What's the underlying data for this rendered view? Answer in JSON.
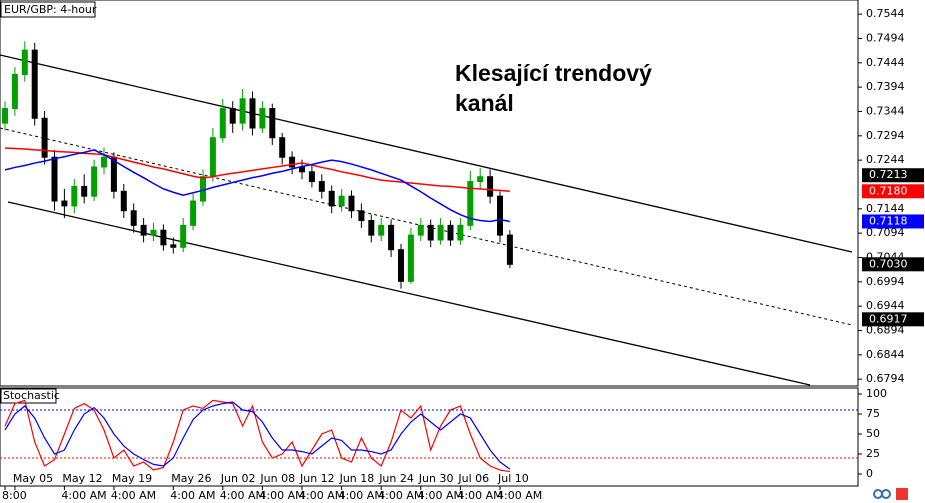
{
  "chart_data": [
    {
      "type": "candlestick",
      "title": "EUR/GBP: 4-hour",
      "annotation": "Klesající trendový kanál",
      "up_color": "#00a000",
      "down_color": "#000000",
      "ylim": [
        0.678,
        0.7573
      ],
      "yticks": [
        0.7544,
        0.7494,
        0.7444,
        0.7394,
        0.7344,
        0.7294,
        0.7244,
        0.7144,
        0.7094,
        0.7044,
        0.6994,
        0.6944,
        0.6894,
        0.6844,
        0.6794
      ],
      "price_tags": [
        {
          "value": 0.7213,
          "label": "0.7213",
          "color": "#000000"
        },
        {
          "value": 0.718,
          "label": "0.7180",
          "color": "#ff0000"
        },
        {
          "value": 0.7118,
          "label": "0.7118",
          "color": "#0000ff"
        },
        {
          "value": 0.703,
          "label": "0.7030",
          "color": "#000000"
        },
        {
          "value": 0.6917,
          "label": "0.6917",
          "color": "#000000"
        }
      ],
      "categories": [
        null,
        "May 05",
        null,
        null,
        null,
        null,
        "May 12",
        null,
        null,
        null,
        null,
        "May 19",
        null,
        null,
        null,
        null,
        null,
        "May 26",
        null,
        null,
        null,
        null,
        "Jun 02",
        null,
        null,
        null,
        "Jun 08",
        null,
        null,
        null,
        "Jun 12",
        null,
        null,
        null,
        "Jun 18",
        null,
        null,
        null,
        "Jun 24",
        null,
        null,
        null,
        "Jun 30",
        null,
        null,
        null,
        "Jul 06",
        null,
        null,
        null,
        "Jul 10",
        null
      ],
      "time_labels": [
        "8:00",
        null,
        null,
        null,
        null,
        null,
        "4:00 AM",
        null,
        null,
        null,
        null,
        "4:00 AM",
        null,
        null,
        null,
        null,
        null,
        "4:00 AM",
        null,
        null,
        null,
        null,
        "4:00 AM",
        null,
        null,
        null,
        "4:00 AM",
        null,
        null,
        null,
        "4:00 AM",
        null,
        null,
        null,
        "4:00 AM",
        null,
        null,
        null,
        "4:00 AM",
        null,
        null,
        null,
        "4:00 AM",
        null,
        null,
        null,
        "4:00 AM",
        null,
        null,
        null,
        "4:00 AM",
        null
      ],
      "open": [
        0.732,
        0.735,
        0.742,
        0.747,
        0.733,
        0.725,
        0.716,
        0.715,
        0.719,
        0.717,
        0.723,
        0.725,
        0.718,
        0.714,
        0.711,
        0.709,
        0.71,
        0.707,
        0.7065,
        0.711,
        0.716,
        0.721,
        0.729,
        0.735,
        0.732,
        0.737,
        0.731,
        0.735,
        0.729,
        0.725,
        0.723,
        0.722,
        0.72,
        0.718,
        0.715,
        0.717,
        0.714,
        0.712,
        0.709,
        0.711,
        0.706,
        0.6995,
        0.709,
        0.711,
        0.708,
        0.711,
        0.708,
        0.711,
        0.72,
        0.721,
        0.717,
        0.709
      ],
      "high": [
        0.7365,
        0.7435,
        0.7488,
        0.7485,
        0.7345,
        0.7265,
        0.7185,
        0.7205,
        0.7215,
        0.7245,
        0.727,
        0.726,
        0.7195,
        0.7155,
        0.7125,
        0.7115,
        0.7112,
        0.7085,
        0.7125,
        0.7175,
        0.7225,
        0.731,
        0.737,
        0.7365,
        0.739,
        0.7385,
        0.7365,
        0.736,
        0.73,
        0.7262,
        0.7245,
        0.7235,
        0.7215,
        0.7192,
        0.7185,
        0.7182,
        0.7155,
        0.7132,
        0.7125,
        0.7122,
        0.7072,
        0.7105,
        0.7125,
        0.7122,
        0.7125,
        0.712,
        0.7125,
        0.7222,
        0.7228,
        0.7225,
        0.718,
        0.71
      ],
      "low": [
        0.7305,
        0.7335,
        0.7405,
        0.7315,
        0.7235,
        0.714,
        0.7125,
        0.7135,
        0.7155,
        0.716,
        0.7215,
        0.7165,
        0.7125,
        0.7095,
        0.7075,
        0.7078,
        0.7058,
        0.7052,
        0.7055,
        0.71,
        0.715,
        0.72,
        0.728,
        0.73,
        0.7305,
        0.7295,
        0.73,
        0.7275,
        0.7235,
        0.7215,
        0.7205,
        0.7188,
        0.7165,
        0.7135,
        0.7138,
        0.7125,
        0.7105,
        0.7075,
        0.7078,
        0.7045,
        0.698,
        0.699,
        0.7078,
        0.7065,
        0.707,
        0.7068,
        0.707,
        0.71,
        0.7185,
        0.7155,
        0.7075,
        0.7022
      ],
      "close": [
        0.735,
        0.742,
        0.747,
        0.733,
        0.725,
        0.716,
        0.715,
        0.719,
        0.717,
        0.723,
        0.725,
        0.718,
        0.714,
        0.711,
        0.709,
        0.71,
        0.707,
        0.7065,
        0.711,
        0.716,
        0.721,
        0.729,
        0.735,
        0.732,
        0.737,
        0.731,
        0.735,
        0.729,
        0.725,
        0.723,
        0.722,
        0.72,
        0.718,
        0.715,
        0.717,
        0.714,
        0.712,
        0.709,
        0.711,
        0.706,
        0.6995,
        0.709,
        0.711,
        0.708,
        0.711,
        0.708,
        0.711,
        0.72,
        0.721,
        0.717,
        0.709,
        0.703
      ],
      "lines": [
        {
          "color": "#ff0000",
          "values": [
            0.7269,
            0.7268,
            0.7267,
            0.7265,
            0.7264,
            0.7262,
            0.7261,
            0.726,
            0.7258,
            0.7257,
            0.7255,
            0.725,
            0.7245,
            0.724,
            0.7235,
            0.723,
            0.7226,
            0.7221,
            0.7216,
            0.7211,
            0.7207,
            0.721,
            0.7214,
            0.7217,
            0.722,
            0.7223,
            0.7226,
            0.7229,
            0.7232,
            0.7235,
            0.7238,
            0.7234,
            0.7229,
            0.7225,
            0.722,
            0.7216,
            0.7212,
            0.7207,
            0.7203,
            0.7201,
            0.7199,
            0.7197,
            0.7195,
            0.7193,
            0.7191,
            0.719,
            0.7188,
            0.7186,
            0.7185,
            0.7183,
            0.7182,
            0.718
          ]
        },
        {
          "color": "#0000ff",
          "values": [
            0.7224,
            0.7229,
            0.7233,
            0.7238,
            0.7242,
            0.7247,
            0.7251,
            0.7256,
            0.726,
            0.7265,
            0.7255,
            0.7243,
            0.7231,
            0.7219,
            0.7208,
            0.7196,
            0.7185,
            0.7178,
            0.7172,
            0.7177,
            0.7182,
            0.7188,
            0.7193,
            0.7198,
            0.7203,
            0.7208,
            0.7212,
            0.7217,
            0.7221,
            0.7226,
            0.7231,
            0.7235,
            0.724,
            0.7244,
            0.7241,
            0.7236,
            0.723,
            0.7224,
            0.7217,
            0.721,
            0.7203,
            0.7191,
            0.7179,
            0.7166,
            0.7154,
            0.7142,
            0.7132,
            0.7124,
            0.712,
            0.7118,
            0.7122,
            0.7118
          ]
        }
      ]
    },
    {
      "type": "line",
      "title": "Stochastic",
      "ylim": [
        -15,
        107.5
      ],
      "yticks": [
        100,
        75,
        50,
        25,
        0
      ],
      "levels": [
        {
          "value": 80,
          "color": "#0000ff"
        },
        {
          "value": 20,
          "color": "#ff0000"
        }
      ],
      "series": [
        {
          "color": "#ff0000",
          "values": [
            60,
            88,
            92,
            40,
            10,
            18,
            50,
            82,
            88,
            80,
            55,
            20,
            30,
            10,
            15,
            5,
            8,
            40,
            80,
            85,
            82,
            92,
            90,
            88,
            60,
            85,
            40,
            20,
            25,
            40,
            10,
            30,
            50,
            55,
            20,
            15,
            45,
            20,
            10,
            40,
            80,
            70,
            85,
            30,
            60,
            80,
            85,
            50,
            20,
            10,
            5,
            3
          ]
        },
        {
          "color": "#0000ff",
          "values": [
            55,
            75,
            85,
            70,
            45,
            25,
            30,
            55,
            75,
            83,
            70,
            50,
            35,
            25,
            18,
            12,
            10,
            20,
            45,
            68,
            80,
            85,
            88,
            90,
            80,
            78,
            65,
            45,
            30,
            30,
            28,
            25,
            35,
            45,
            42,
            30,
            30,
            28,
            25,
            30,
            50,
            65,
            75,
            65,
            55,
            65,
            75,
            70,
            50,
            30,
            15,
            6
          ]
        }
      ]
    }
  ]
}
